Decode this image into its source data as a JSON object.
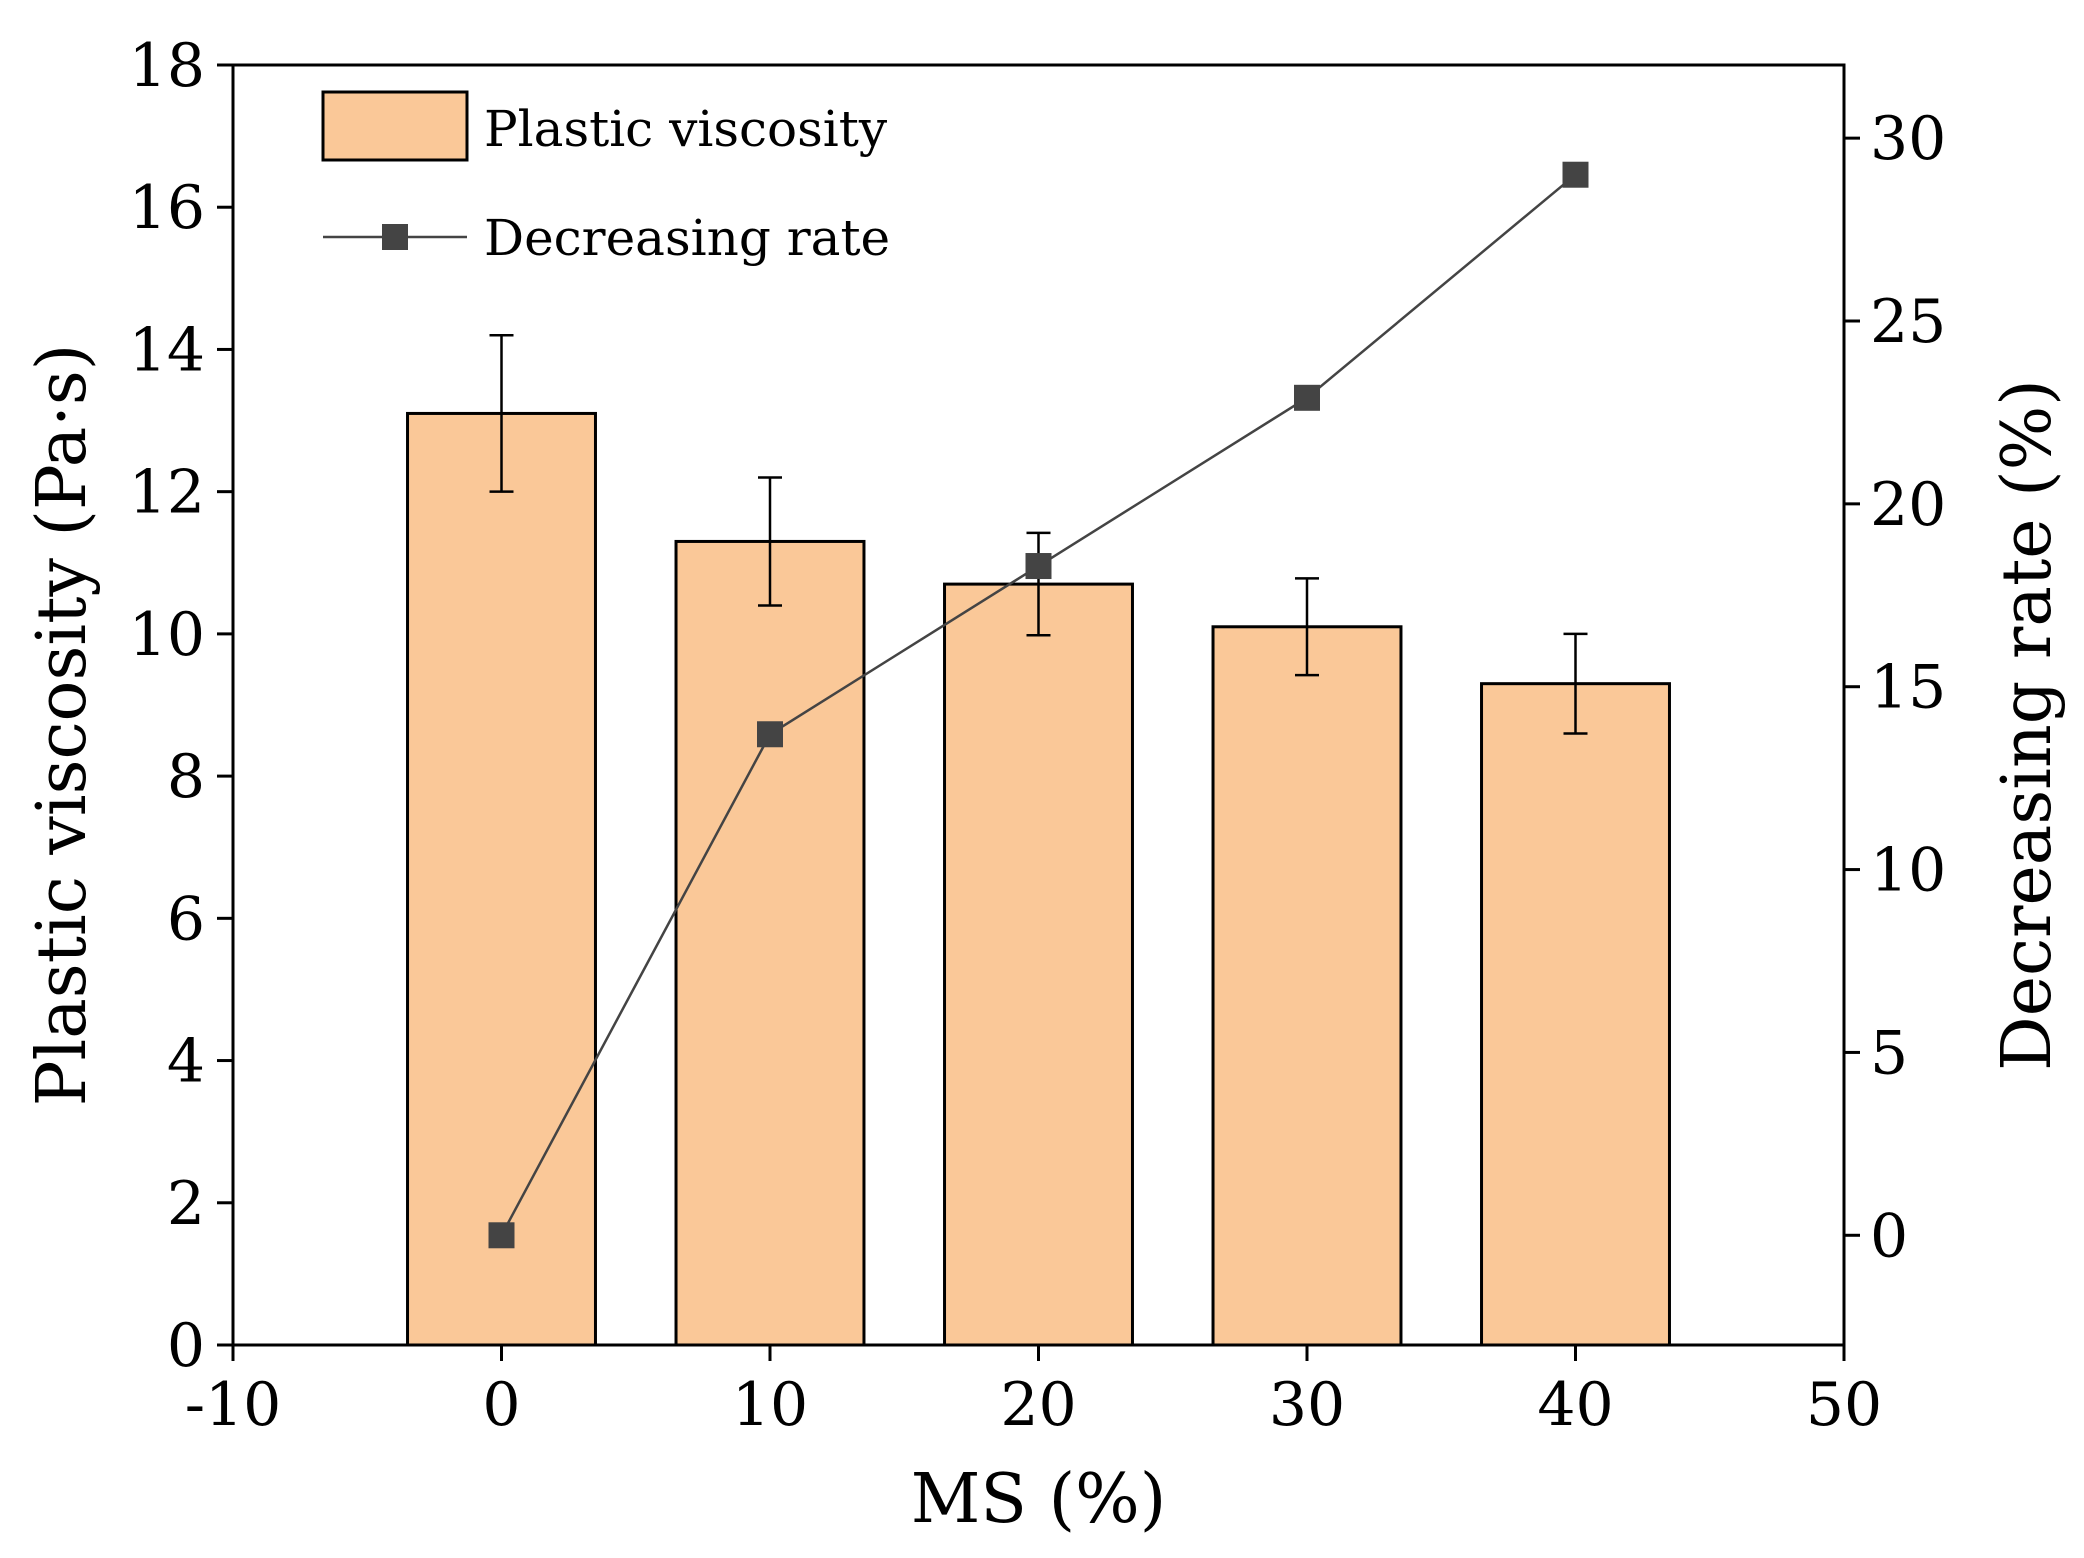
{
  "chart_data": {
    "type": "bar+line",
    "xlabel": "MS (%)",
    "ylabel_left": "Plastic viscosity (Pa·s)",
    "ylabel_right": "Decreasing rate (%)",
    "xlim": [
      -10,
      50
    ],
    "xticks": [
      "-10",
      "0",
      "10",
      "20",
      "30",
      "40",
      "50"
    ],
    "ylim_left": [
      0,
      18
    ],
    "yticks_left": [
      "0",
      "2",
      "4",
      "6",
      "8",
      "10",
      "12",
      "14",
      "16",
      "18"
    ],
    "ylim_right": [
      -3,
      32
    ],
    "yticks_right": [
      "0",
      "5",
      "10",
      "15",
      "20",
      "25",
      "30"
    ],
    "x": [
      0,
      10,
      20,
      30,
      40
    ],
    "bar_width": 7,
    "series": [
      {
        "name": "Plastic viscosity",
        "kind": "bar",
        "values": [
          13.1,
          11.3,
          10.7,
          10.1,
          9.3
        ],
        "error": [
          1.1,
          0.9,
          0.72,
          0.68,
          0.7
        ],
        "axis": "left"
      },
      {
        "name": "Decreasing rate",
        "kind": "line",
        "marker": "square",
        "values": [
          0,
          13.7,
          18.3,
          22.9,
          29.0
        ],
        "axis": "right"
      }
    ],
    "legend": {
      "position": "top-left",
      "entries": [
        "Plastic viscosity",
        "Decreasing rate"
      ]
    },
    "colors": {
      "bar_fill": "#FAC898",
      "bar_stroke": "#000000",
      "line": "#444444",
      "marker": "#444444",
      "axis": "#000000"
    }
  }
}
